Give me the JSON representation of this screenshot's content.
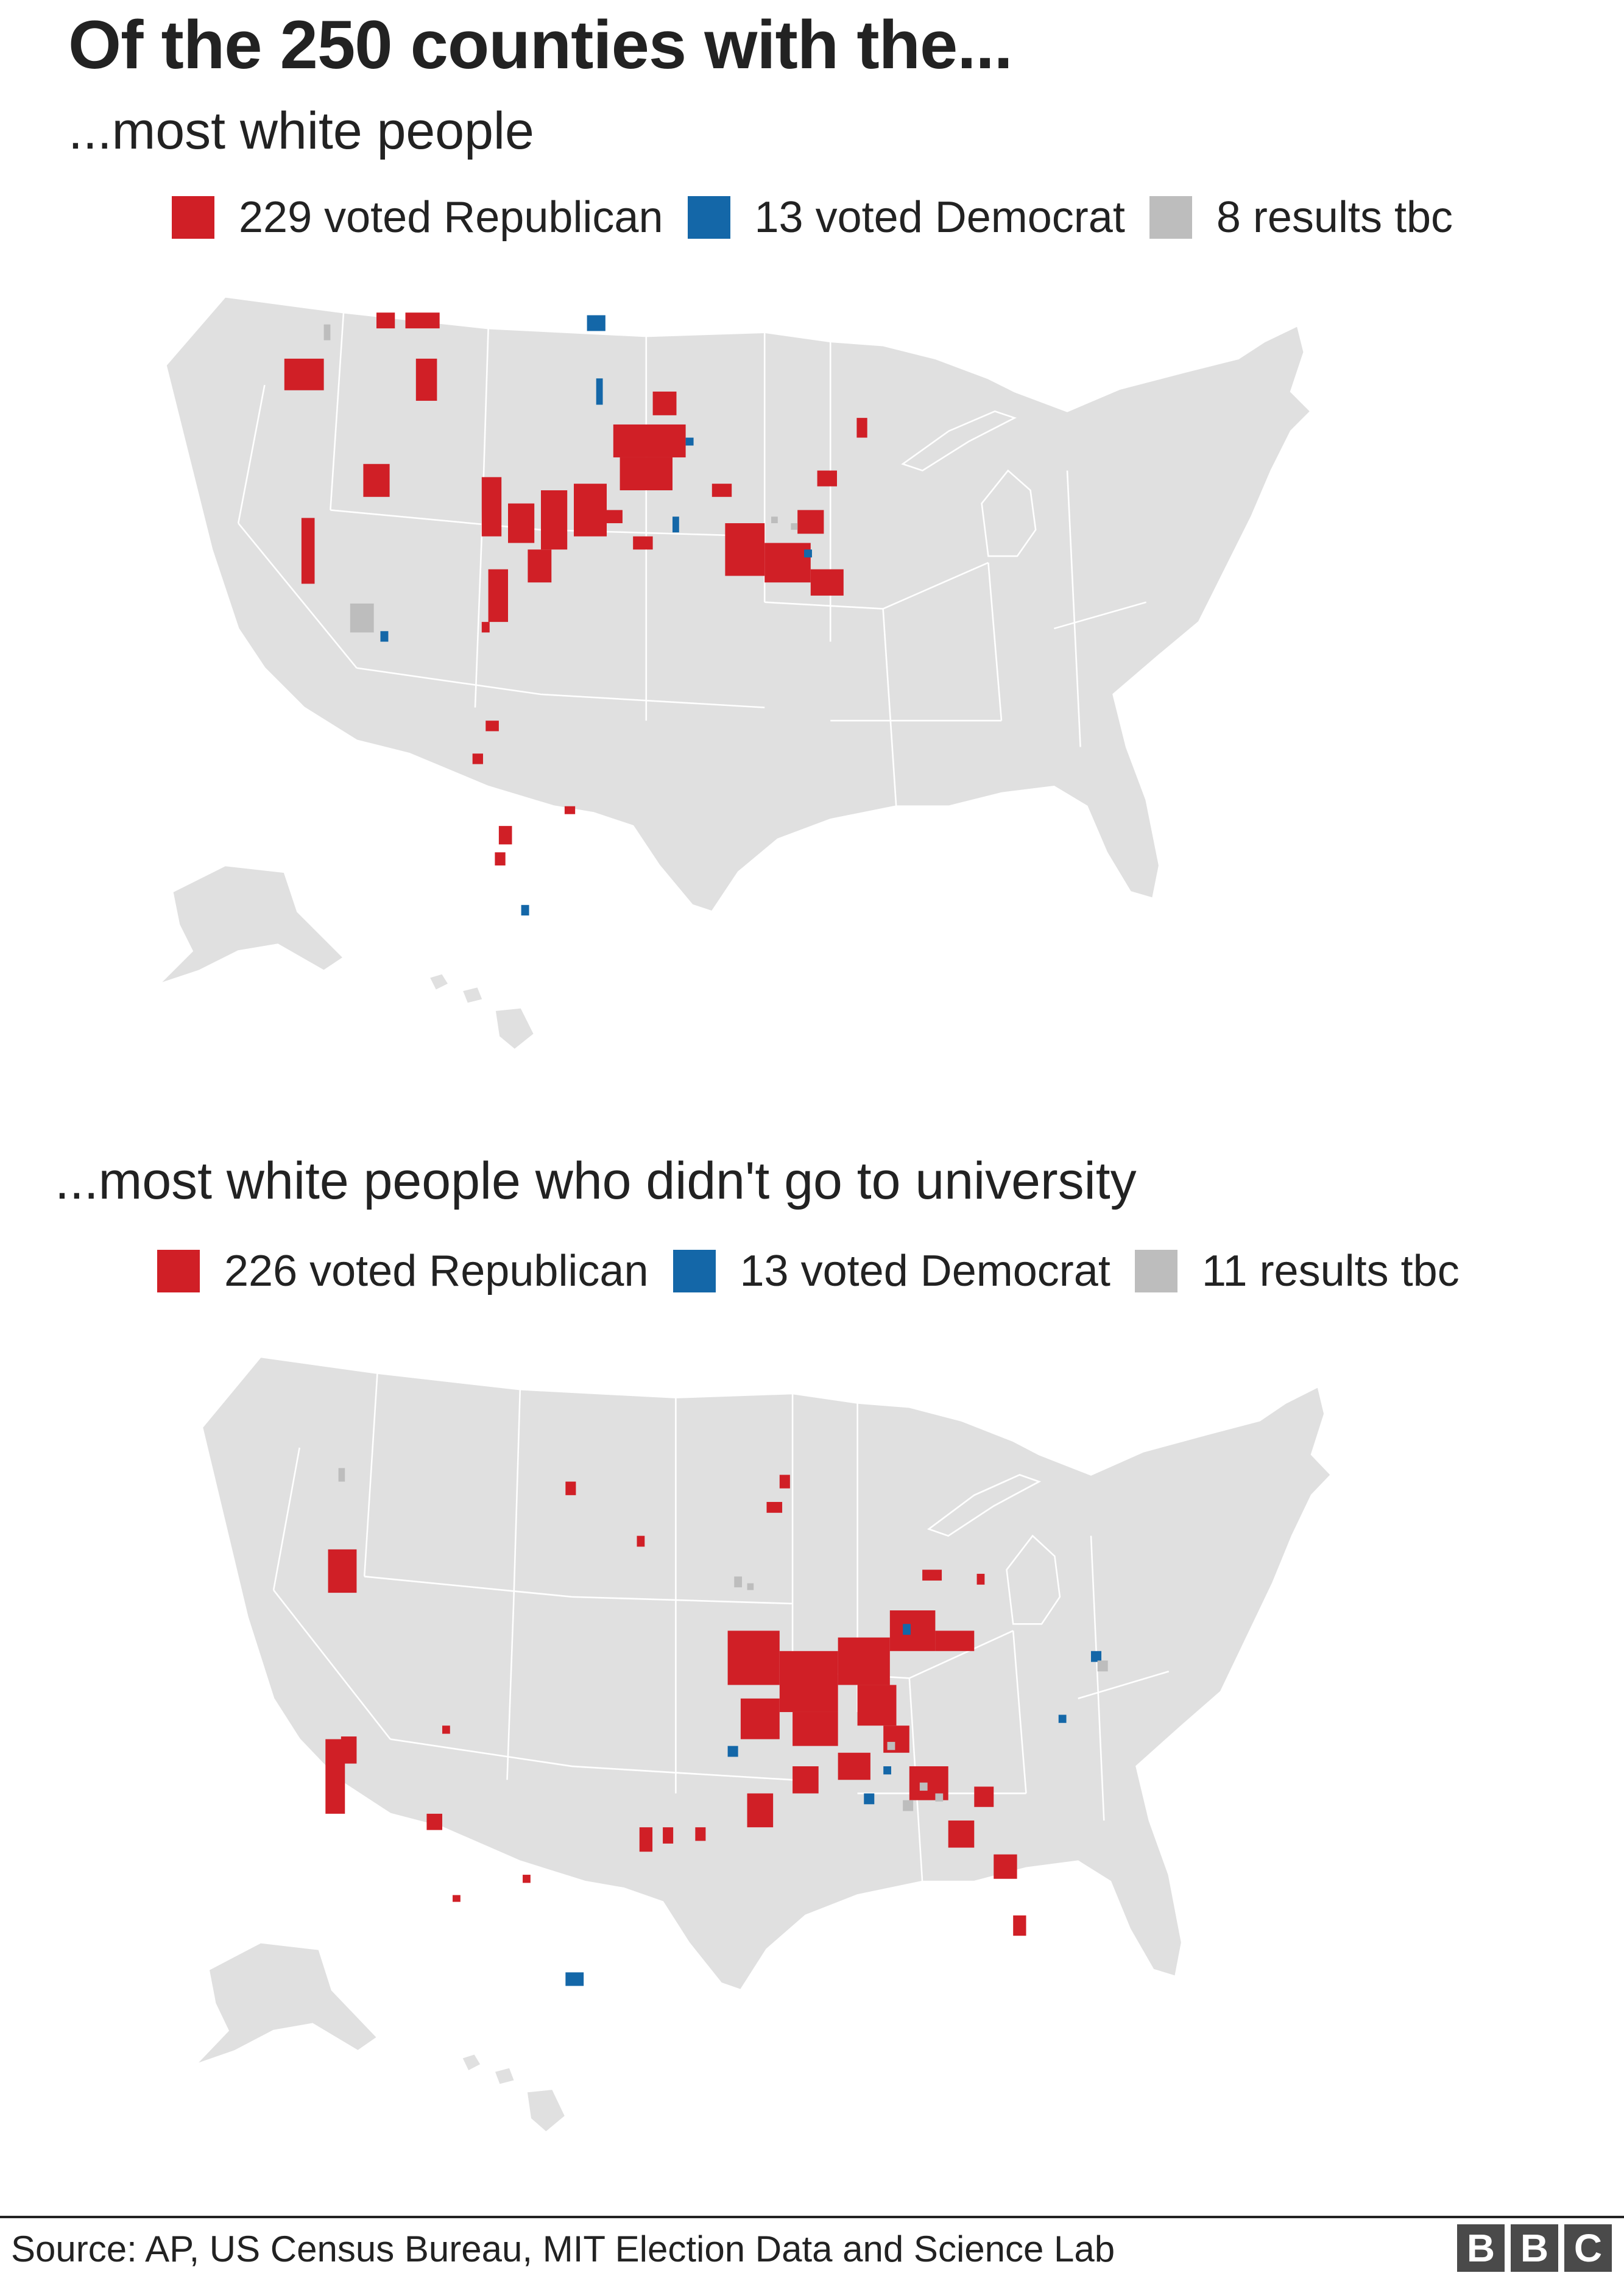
{
  "title": "Of the 250 counties with the...",
  "colors": {
    "republican": "#d01f26",
    "democrat": "#1467a8",
    "tbc": "#bdbdbd",
    "land": "#e0e0e0",
    "borders": "#ffffff"
  },
  "maps": [
    {
      "subtitle": "...most white people",
      "legend": [
        {
          "label": "229 voted Republican",
          "color": "#d01f26",
          "count": 229
        },
        {
          "label": "13 voted Democrat",
          "color": "#1467a8",
          "count": 13
        },
        {
          "label": "8 results tbc",
          "color": "#bdbdbd",
          "count": 8
        }
      ]
    },
    {
      "subtitle": "...most white people who didn't go to university",
      "legend": [
        {
          "label": "226 voted Republican",
          "color": "#d01f26",
          "count": 226
        },
        {
          "label": "13 voted Democrat",
          "color": "#1467a8",
          "count": 13
        },
        {
          "label": "11 results tbc",
          "color": "#bdbdbd",
          "count": 11
        }
      ]
    }
  ],
  "source": "Source: AP, US Census Bureau, MIT Election Data and Science Lab",
  "logo_letters": [
    "B",
    "B",
    "C"
  ]
}
